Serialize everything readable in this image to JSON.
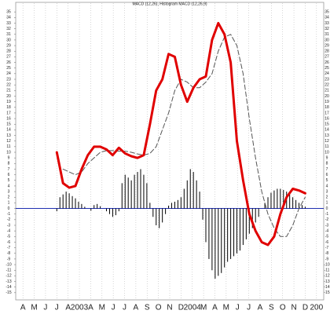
{
  "chart_data": {
    "type": "line",
    "title": "MACD (12,26), Histogram MACD (12,26,9)",
    "categories": [
      "A",
      "M",
      "J",
      "J",
      "A",
      "2003",
      "A",
      "M",
      "J",
      "J",
      "A",
      "S",
      "O",
      "N",
      "D",
      "2004",
      "M",
      "A",
      "M",
      "J",
      "J",
      "A",
      "S",
      "O",
      "N",
      "D",
      "200"
    ],
    "xlim": [
      0,
      27
    ],
    "ylim": [
      -16,
      36
    ],
    "yticks": [
      -15,
      -14,
      -13,
      -12,
      -11,
      -10,
      -9,
      -8,
      -7,
      -6,
      -5,
      -4,
      -3,
      -2,
      -1,
      0,
      1,
      2,
      3,
      4,
      5,
      6,
      7,
      8,
      9,
      10,
      11,
      12,
      13,
      14,
      15,
      16,
      17,
      18,
      19,
      20,
      21,
      22,
      23,
      24,
      25,
      26,
      27,
      28,
      29,
      30,
      31,
      32,
      33,
      34,
      35
    ],
    "hline": {
      "value": 0,
      "color": "#1f2fb0"
    },
    "series": [
      {
        "type": "bar",
        "color": "#000000",
        "x": [
          3.5,
          3.775,
          4.05,
          4.325,
          4.6,
          4.875,
          5.15,
          5.425,
          5.7,
          5.975,
          6.25,
          6.525,
          6.8,
          7.075,
          7.35,
          7.625,
          7.9,
          8.175,
          8.45,
          8.725,
          9,
          9.275,
          9.55,
          9.825,
          10.1,
          10.375,
          10.65,
          10.925,
          11.2,
          11.475,
          11.75,
          12.025,
          12.3,
          12.575,
          12.85,
          13.125,
          13.4,
          13.675,
          13.95,
          14.225,
          14.5,
          14.775,
          15.05,
          15.325,
          15.6,
          15.875,
          16.15,
          16.425,
          16.7,
          16.975,
          17.25,
          17.525,
          17.8,
          18.075,
          18.35,
          18.625,
          18.9,
          19.175,
          19.45,
          19.725,
          20,
          20.275,
          20.55,
          20.825,
          21.1,
          21.375,
          21.65,
          21.925,
          22.2,
          22.475,
          22.75,
          23.025,
          23.3,
          23.575,
          23.85,
          24.125,
          24.4,
          24.675,
          24.95,
          25.225,
          25.5
        ],
        "values": [
          -0.5,
          2,
          2.5,
          3,
          2.7,
          2.2,
          1.8,
          1.2,
          0.8,
          0.3,
          0,
          -0.4,
          0.6,
          0.8,
          0.4,
          0,
          -0.5,
          -1,
          -1.5,
          -1.2,
          -0.5,
          4.5,
          6,
          5.5,
          5,
          6,
          6.5,
          7,
          6,
          4.5,
          1,
          -1.5,
          -3,
          -3.5,
          -2.5,
          -1,
          0.5,
          1,
          1.2,
          1.5,
          2,
          3.5,
          5,
          7,
          6.5,
          5,
          3,
          -2,
          -6,
          -9,
          -11,
          -12.5,
          -12,
          -11.5,
          -10.5,
          -9.5,
          -9,
          -8.5,
          -8,
          -7.5,
          -6.5,
          -5.5,
          -4.5,
          -3.5,
          -2.5,
          -1.5,
          0,
          1,
          2,
          2.8,
          3.2,
          3.5,
          3.5,
          3.3,
          3,
          2.5,
          2,
          1.5,
          1,
          0.6,
          0.3
        ]
      },
      {
        "type": "line",
        "color": "#555555",
        "dash": true,
        "x": [
          3.5,
          4.05,
          4.6,
          5.15,
          5.7,
          6.25,
          6.8,
          7.35,
          7.9,
          8.45,
          9,
          9.55,
          10.1,
          10.65,
          11.2,
          11.75,
          12.3,
          12.85,
          13.4,
          13.95,
          14.5,
          15.05,
          15.6,
          16.15,
          16.7,
          17.25,
          17.8,
          18.35,
          18.9,
          19.45,
          20,
          20.55,
          21.1,
          21.65,
          22.2,
          22.75,
          23.3,
          23.85,
          24.4,
          24.95,
          25.5
        ],
        "values": [
          null,
          7,
          6.5,
          6,
          6.5,
          8,
          9,
          10,
          10.3,
          10.3,
          10.2,
          10.2,
          10,
          9.7,
          9.5,
          9.8,
          11,
          14,
          17,
          21,
          23,
          22.5,
          21.5,
          21.5,
          22.5,
          24,
          28,
          30.5,
          31,
          29,
          24,
          16,
          9,
          3,
          -1,
          -3.5,
          -5,
          -5,
          -3,
          0,
          2
        ]
      },
      {
        "type": "line",
        "color": "#e00000",
        "dash": false,
        "x": [
          3.5,
          4.05,
          4.6,
          5.15,
          5.7,
          6.25,
          6.8,
          7.35,
          7.9,
          8.45,
          9,
          9.55,
          10.1,
          10.65,
          11.2,
          11.75,
          12.3,
          12.85,
          13.4,
          13.95,
          14.5,
          15.05,
          15.6,
          16.15,
          16.7,
          17.25,
          17.8,
          18.35,
          18.9,
          19.45,
          20,
          20.55,
          21.1,
          21.65,
          22.2,
          22.75,
          23.3,
          23.85,
          24.4,
          24.95,
          25.5
        ],
        "values": [
          10,
          4.5,
          3.7,
          4,
          7,
          9.5,
          11,
          11,
          10.5,
          9.5,
          10.8,
          9.8,
          9.3,
          9,
          9.5,
          15,
          21,
          23,
          27.5,
          27,
          22,
          19,
          21.5,
          23,
          23.5,
          30,
          33,
          31,
          26,
          12,
          5,
          -1,
          -4,
          -6,
          -6.5,
          -5,
          -1,
          2,
          3.5,
          3.2,
          2.7
        ]
      }
    ]
  }
}
